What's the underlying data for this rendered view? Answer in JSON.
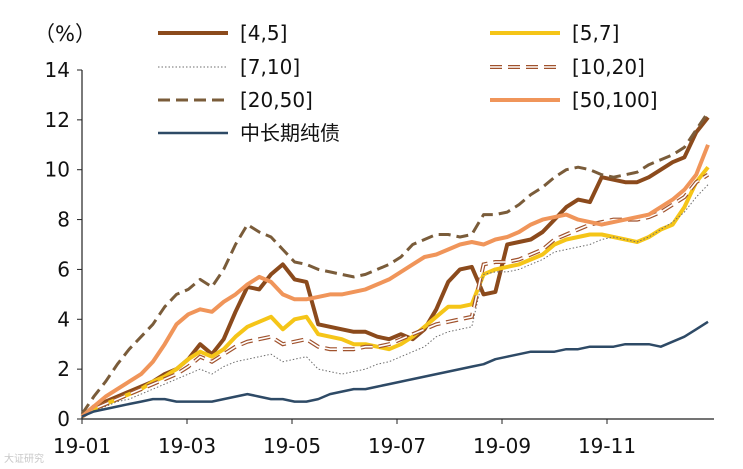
{
  "chart_data": {
    "type": "line",
    "ylabel": "（%）",
    "ylim": [
      0,
      14
    ],
    "yticks": [
      "0",
      "2",
      "4",
      "6",
      "8",
      "10",
      "12",
      "14"
    ],
    "xticks": [
      "19-01",
      "19-03",
      "19-05",
      "19-07",
      "19-09",
      "19-11"
    ],
    "grid": false,
    "legend_position": "top",
    "n_points": 54,
    "series": [
      {
        "name": "[4,5]",
        "color": "#8B4A1C",
        "style": "solid",
        "width": 4,
        "values": [
          0.1,
          0.5,
          0.7,
          0.9,
          1.1,
          1.3,
          1.5,
          1.8,
          2.0,
          2.4,
          3.0,
          2.6,
          3.2,
          4.3,
          5.3,
          5.2,
          5.8,
          6.2,
          5.6,
          5.5,
          3.8,
          3.7,
          3.6,
          3.5,
          3.5,
          3.3,
          3.2,
          3.4,
          3.2,
          3.6,
          4.4,
          5.5,
          6.0,
          6.1,
          5.0,
          5.1,
          7.0,
          7.1,
          7.2,
          7.5,
          8.0,
          8.5,
          8.8,
          8.7,
          9.7,
          9.6,
          9.5,
          9.5,
          9.7,
          10.0,
          10.3,
          10.5,
          11.5,
          12.1
        ]
      },
      {
        "name": "[5,7]",
        "color": "#F5C518",
        "style": "solid",
        "width": 4,
        "values": [
          0.1,
          0.4,
          0.6,
          0.8,
          1.0,
          1.2,
          1.5,
          1.7,
          2.0,
          2.4,
          2.7,
          2.5,
          2.8,
          3.3,
          3.7,
          3.9,
          4.1,
          3.6,
          4.0,
          4.1,
          3.4,
          3.3,
          3.2,
          3.0,
          3.0,
          2.9,
          2.8,
          3.0,
          3.3,
          3.7,
          4.1,
          4.5,
          4.5,
          4.6,
          5.8,
          6.0,
          6.1,
          6.2,
          6.4,
          6.6,
          7.0,
          7.2,
          7.3,
          7.4,
          7.4,
          7.3,
          7.2,
          7.1,
          7.3,
          7.6,
          7.8,
          8.5,
          9.5,
          10.1
        ]
      },
      {
        "name": "[7,10]",
        "color": "#6E6E6E",
        "style": "dotted",
        "width": 1,
        "values": [
          0.1,
          0.3,
          0.5,
          0.7,
          0.8,
          1.0,
          1.2,
          1.4,
          1.6,
          1.8,
          2.0,
          1.8,
          2.1,
          2.3,
          2.4,
          2.5,
          2.6,
          2.3,
          2.4,
          2.5,
          2.0,
          1.9,
          1.8,
          1.9,
          2.0,
          2.2,
          2.3,
          2.5,
          2.7,
          2.9,
          3.3,
          3.5,
          3.6,
          3.7,
          5.8,
          5.9,
          5.9,
          6.0,
          6.2,
          6.4,
          6.7,
          6.8,
          6.9,
          7.0,
          7.2,
          7.3,
          7.2,
          7.1,
          7.3,
          7.6,
          7.9,
          8.3,
          8.9,
          9.4
        ]
      },
      {
        "name": "[10,20]",
        "color": "#A0522D",
        "style": "outline-dash",
        "width": 3,
        "values": [
          0.1,
          0.4,
          0.6,
          0.8,
          1.0,
          1.2,
          1.4,
          1.6,
          1.8,
          2.1,
          2.5,
          2.3,
          2.6,
          2.9,
          3.1,
          3.2,
          3.3,
          3.0,
          3.1,
          3.2,
          2.9,
          2.8,
          2.8,
          2.8,
          2.9,
          2.9,
          3.0,
          3.2,
          3.4,
          3.6,
          3.8,
          3.9,
          4.0,
          4.1,
          6.2,
          6.3,
          6.3,
          6.4,
          6.6,
          6.8,
          7.2,
          7.4,
          7.6,
          7.8,
          7.9,
          8.0,
          8.0,
          8.0,
          8.1,
          8.3,
          8.6,
          8.9,
          9.5,
          9.8
        ]
      },
      {
        "name": "[20,50]",
        "color": "#7A5C3A",
        "style": "dashed",
        "width": 3,
        "values": [
          0.2,
          0.9,
          1.5,
          2.2,
          2.8,
          3.3,
          3.8,
          4.5,
          5.0,
          5.2,
          5.6,
          5.3,
          6.0,
          7.0,
          7.8,
          7.5,
          7.3,
          6.8,
          6.3,
          6.2,
          6.0,
          5.9,
          5.8,
          5.7,
          5.8,
          6.0,
          6.2,
          6.5,
          7.0,
          7.2,
          7.4,
          7.4,
          7.3,
          7.4,
          8.2,
          8.2,
          8.3,
          8.6,
          9.0,
          9.3,
          9.7,
          10.0,
          10.1,
          10.0,
          9.8,
          9.7,
          9.8,
          9.9,
          10.2,
          10.4,
          10.6,
          10.9,
          11.6,
          12.3
        ]
      },
      {
        "name": "[50,100]",
        "color": "#F0955A",
        "style": "solid",
        "width": 4,
        "values": [
          0.1,
          0.5,
          0.9,
          1.2,
          1.5,
          1.8,
          2.3,
          3.0,
          3.8,
          4.2,
          4.4,
          4.3,
          4.7,
          5.0,
          5.4,
          5.7,
          5.5,
          5.0,
          4.8,
          4.8,
          4.9,
          5.0,
          5.0,
          5.1,
          5.2,
          5.4,
          5.6,
          5.9,
          6.2,
          6.5,
          6.6,
          6.8,
          7.0,
          7.1,
          7.0,
          7.2,
          7.3,
          7.5,
          7.8,
          8.0,
          8.1,
          8.2,
          8.0,
          7.9,
          7.8,
          7.9,
          8.0,
          8.1,
          8.2,
          8.5,
          8.8,
          9.2,
          9.8,
          11.0
        ]
      },
      {
        "name": "中长期纯债",
        "color": "#2E4A66",
        "style": "solid",
        "width": 2.5,
        "values": [
          0.1,
          0.3,
          0.4,
          0.5,
          0.6,
          0.7,
          0.8,
          0.8,
          0.7,
          0.7,
          0.7,
          0.7,
          0.8,
          0.9,
          1.0,
          0.9,
          0.8,
          0.8,
          0.7,
          0.7,
          0.8,
          1.0,
          1.1,
          1.2,
          1.2,
          1.3,
          1.4,
          1.5,
          1.6,
          1.7,
          1.8,
          1.9,
          2.0,
          2.1,
          2.2,
          2.4,
          2.5,
          2.6,
          2.7,
          2.7,
          2.7,
          2.8,
          2.8,
          2.9,
          2.9,
          2.9,
          3.0,
          3.0,
          3.0,
          2.9,
          3.1,
          3.3,
          3.6,
          3.9
        ]
      }
    ]
  },
  "watermark": "大证研究"
}
